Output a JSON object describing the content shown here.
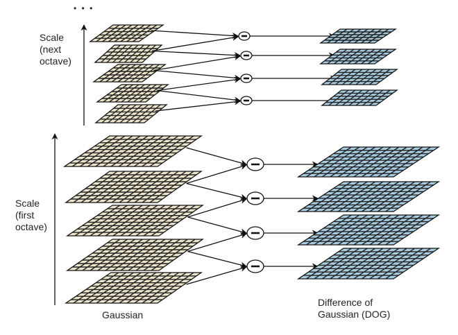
{
  "labels": {
    "ellipsis": "• • •",
    "next_octave": [
      "Scale",
      "(next",
      "octave)"
    ],
    "first_octave": [
      "Scale",
      "(first",
      "octave)"
    ],
    "gaussian": "Gaussian",
    "dog": [
      "Difference of",
      "Gaussian (DOG)"
    ]
  },
  "operator_symbol": "minus",
  "colors": {
    "gaussian_fill": "#ece5cc",
    "dog_fill": "#a8cde0",
    "line": "#111111"
  },
  "octaves": [
    {
      "name": "next",
      "gaussian_layers": 5,
      "dog_layers": 4
    },
    {
      "name": "first",
      "gaussian_layers": 5,
      "dog_layers": 4
    }
  ]
}
